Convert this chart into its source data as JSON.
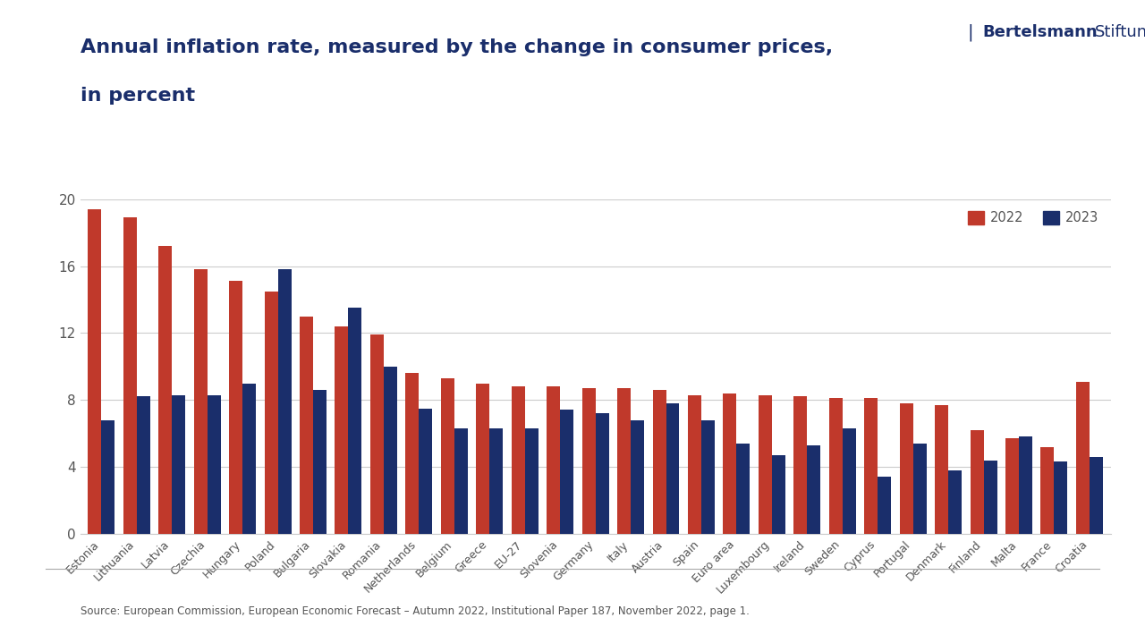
{
  "title_line1": "Annual inflation rate, measured by the change in consumer prices,",
  "title_line2": "in percent",
  "title_color": "#1a2e6b",
  "categories": [
    "Estonia",
    "Lithuania",
    "Latvia",
    "Czechia",
    "Hungary",
    "Poland",
    "Bulgaria",
    "Slovakia",
    "Romania",
    "Netherlands",
    "Belgium",
    "Greece",
    "EU-27",
    "Slovenia",
    "Germany",
    "Italy",
    "Austria",
    "Spain",
    "Euro area",
    "Luxembourg",
    "Ireland",
    "Sweden",
    "Cyprus",
    "Portugal",
    "Denmark",
    "Finland",
    "Malta",
    "France",
    "Croatia"
  ],
  "values_2022": [
    19.4,
    18.9,
    17.2,
    15.8,
    15.1,
    14.5,
    13.0,
    12.4,
    11.9,
    9.6,
    9.3,
    9.0,
    8.8,
    8.8,
    8.7,
    8.7,
    8.6,
    8.3,
    8.4,
    8.3,
    8.2,
    8.1,
    8.1,
    7.8,
    7.7,
    6.2,
    5.7,
    5.2,
    9.1
  ],
  "values_2023": [
    6.8,
    8.2,
    8.3,
    8.3,
    9.0,
    15.8,
    8.6,
    13.5,
    10.0,
    7.5,
    6.3,
    6.3,
    6.3,
    7.4,
    7.2,
    6.8,
    7.8,
    6.8,
    5.4,
    4.7,
    5.3,
    6.3,
    3.4,
    5.4,
    3.8,
    4.4,
    5.8,
    4.3,
    4.6
  ],
  "color_2022": "#c0392b",
  "color_2023": "#1a2e6b",
  "ylim": [
    0,
    20
  ],
  "yticks": [
    0,
    4,
    8,
    12,
    16,
    20
  ],
  "source": "Source: European Commission, European Economic Forecast – Autumn 2022, Institutional Paper 187, November 2022, page 1.",
  "background_color": "#ffffff"
}
